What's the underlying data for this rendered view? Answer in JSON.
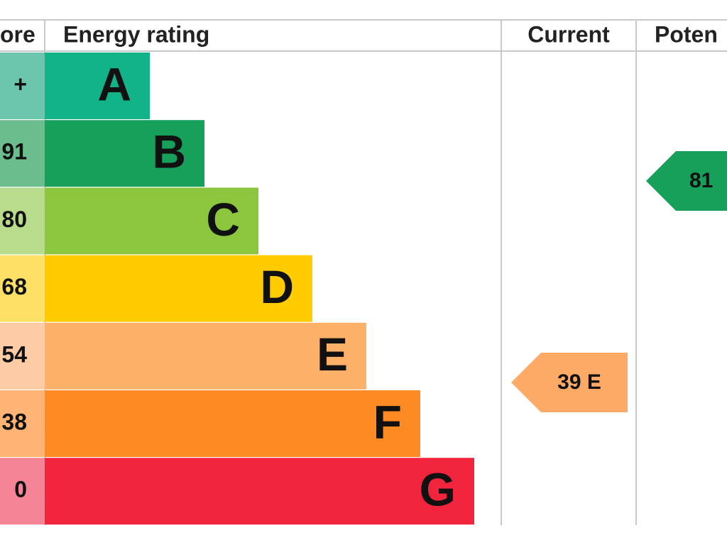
{
  "header": {
    "score": "ore",
    "rating": "Energy rating",
    "current": "Current",
    "potential": "Poten"
  },
  "rows": [
    {
      "score": "+",
      "letter": "A"
    },
    {
      "score": "91",
      "letter": "B"
    },
    {
      "score": "80",
      "letter": "C"
    },
    {
      "score": "68",
      "letter": "D"
    },
    {
      "score": "54",
      "letter": "E"
    },
    {
      "score": "38",
      "letter": "F"
    },
    {
      "score": "0",
      "letter": "G"
    }
  ],
  "current": {
    "label": "39 E"
  },
  "potential": {
    "label": "81"
  }
}
